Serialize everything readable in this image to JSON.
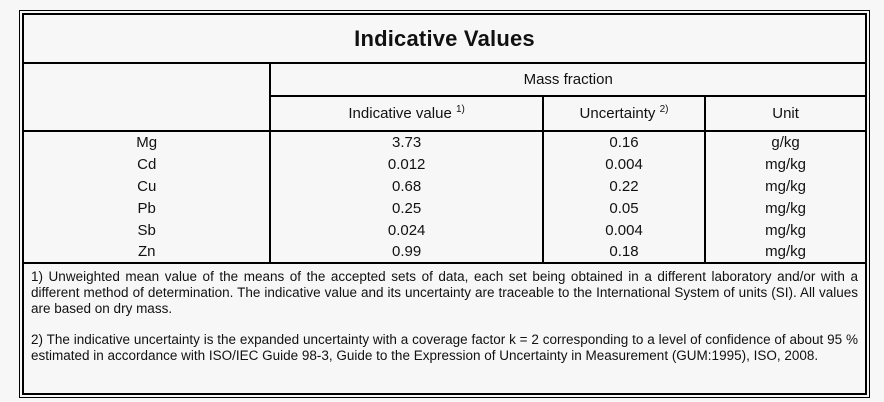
{
  "page": {
    "title": "Indicative Values"
  },
  "table": {
    "group_header": "Mass fraction",
    "columns": {
      "indicative_value": "Indicative value",
      "indicative_value_sup": "1)",
      "uncertainty": "Uncertainty",
      "uncertainty_sup": "2)",
      "unit": "Unit"
    },
    "rows": [
      {
        "element": "Mg",
        "value": "3.73",
        "uncertainty": "0.16",
        "unit": "g/kg"
      },
      {
        "element": "Cd",
        "value": "0.012",
        "uncertainty": "0.004",
        "unit": "mg/kg"
      },
      {
        "element": "Cu",
        "value": "0.68",
        "uncertainty": "0.22",
        "unit": "mg/kg"
      },
      {
        "element": "Pb",
        "value": "0.25",
        "uncertainty": "0.05",
        "unit": "mg/kg"
      },
      {
        "element": "Sb",
        "value": "0.024",
        "uncertainty": "0.004",
        "unit": "mg/kg"
      },
      {
        "element": "Zn",
        "value": "0.99",
        "uncertainty": "0.18",
        "unit": "mg/kg"
      }
    ]
  },
  "footnotes": {
    "note1": "1) Unweighted mean value of the means of the accepted sets of data, each set being obtained in a different laboratory and/or with a different method of determination. The indicative value and its uncertainty are traceable to the International System of units (SI). All values are based on dry mass.",
    "note2": "2) The indicative uncertainty is the expanded uncertainty with a coverage factor k = 2 corresponding to a level of confidence of about 95 % estimated in accordance with ISO/IEC Guide 98-3, Guide to the Expression of Uncertainty in Measurement (GUM:1995), ISO, 2008."
  },
  "colors": {
    "border": "#000000",
    "background": "#f7f7f7",
    "text": "#111111"
  }
}
